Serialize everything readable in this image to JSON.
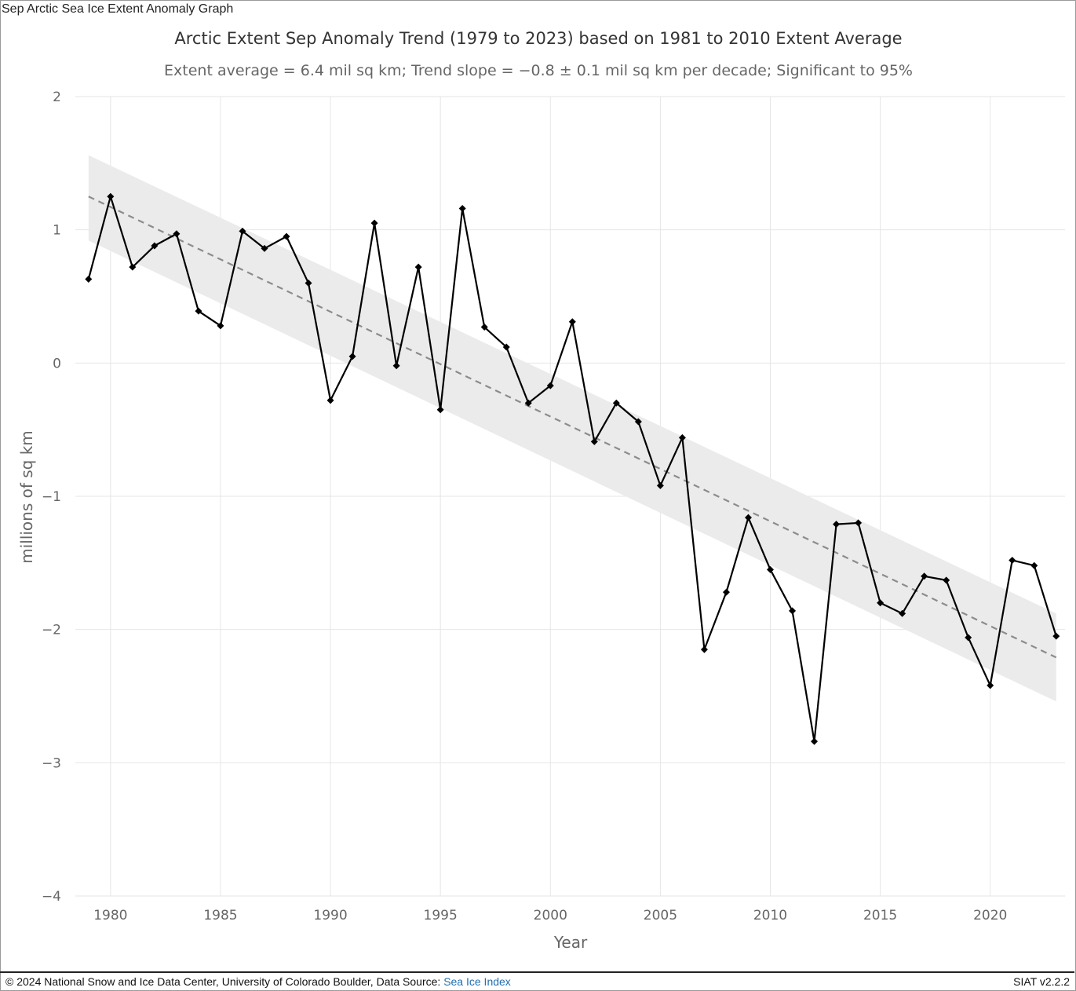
{
  "window": {
    "title": "Sep Arctic Sea Ice Extent Anomaly Graph"
  },
  "footer": {
    "copyright": "© 2024 National Snow and Ice Data Center, University of Colorado Boulder, Data Source: ",
    "source_link": "Sea Ice Index",
    "version": "SIAT v2.2.2"
  },
  "colors": {
    "series": "#000000",
    "trend": "#8c8c8c",
    "confidence_band": "#ebebeb",
    "grid": "#e6e6e6",
    "link": "#1f6fb2"
  },
  "chart_data": {
    "type": "line",
    "title": "Arctic Extent Sep Anomaly Trend (1979 to 2023) based on 1981 to 2010 Extent Average",
    "subtitle": "Extent average = 6.4 mil sq km; Trend slope = −0.8 ± 0.1 mil sq km per decade; Significant to 95%",
    "xlabel": "Year",
    "ylabel": "millions of sq km",
    "xlim": [
      1978.4,
      2023.4
    ],
    "ylim": [
      -4,
      2
    ],
    "x_ticks": [
      1980,
      1985,
      1990,
      1995,
      2000,
      2005,
      2010,
      2015,
      2020
    ],
    "y_ticks": [
      2,
      1,
      0,
      -1,
      -2,
      -3,
      -4
    ],
    "y_tick_labels": [
      "2",
      "1",
      "0",
      "−1",
      "−2",
      "−3",
      "−4"
    ],
    "grid": true,
    "legend": "none",
    "x": [
      1979,
      1980,
      1981,
      1982,
      1983,
      1984,
      1985,
      1986,
      1987,
      1988,
      1989,
      1990,
      1991,
      1992,
      1993,
      1994,
      1995,
      1996,
      1997,
      1998,
      1999,
      2000,
      2001,
      2002,
      2003,
      2004,
      2005,
      2006,
      2007,
      2008,
      2009,
      2010,
      2011,
      2012,
      2013,
      2014,
      2015,
      2016,
      2017,
      2018,
      2019,
      2020,
      2021,
      2022,
      2023
    ],
    "series": [
      {
        "values": [
          0.63,
          1.25,
          0.72,
          0.88,
          0.97,
          0.39,
          0.28,
          0.99,
          0.86,
          0.95,
          0.6,
          -0.28,
          0.05,
          1.05,
          -0.02,
          0.72,
          -0.35,
          1.16,
          0.27,
          0.12,
          -0.3,
          -0.17,
          0.31,
          -0.59,
          -0.3,
          -0.44,
          -0.92,
          -0.56,
          -2.15,
          -1.72,
          -1.16,
          -1.55,
          -1.86,
          -2.84,
          -1.21,
          -1.2,
          -1.8,
          -1.88,
          -1.6,
          -1.63,
          -2.06,
          -2.42,
          -1.48,
          -1.52,
          -2.05
        ]
      }
    ],
    "trend": {
      "start": [
        1979,
        1.25
      ],
      "end": [
        2023,
        -2.21
      ]
    },
    "confidence_band": {
      "upper": [
        [
          1979,
          1.56
        ],
        [
          2023,
          -1.88
        ]
      ],
      "lower": [
        [
          1979,
          0.92
        ],
        [
          2023,
          -2.54
        ]
      ]
    }
  }
}
